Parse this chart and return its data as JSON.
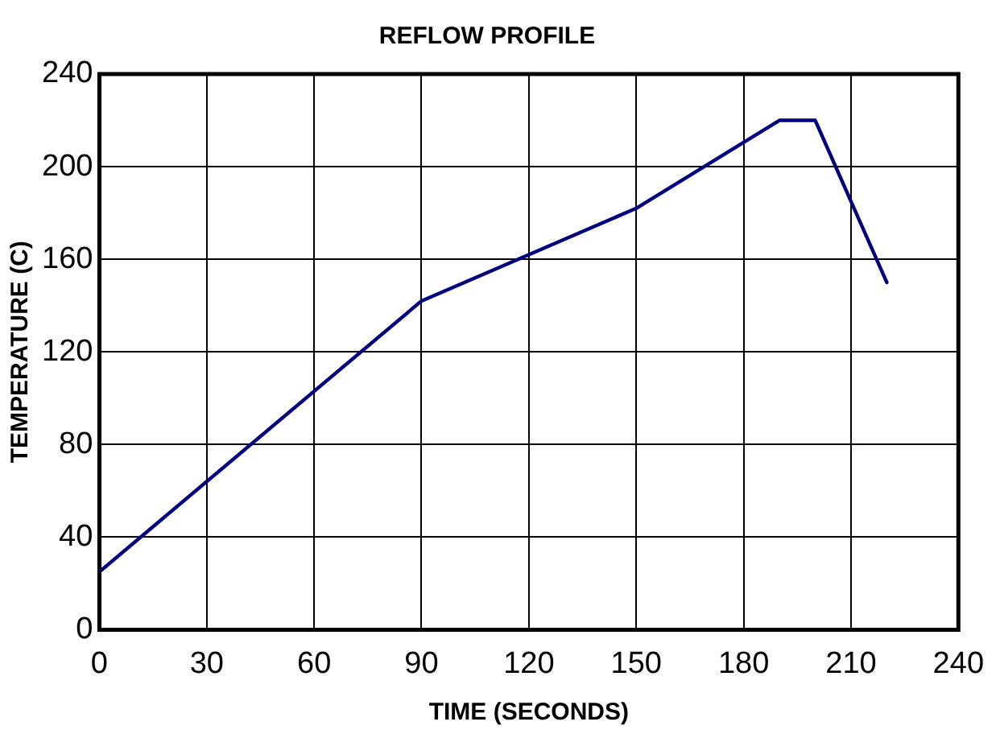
{
  "chart_data": {
    "type": "line",
    "title": "REFLOW PROFILE",
    "xlabel": "TIME (SECONDS)",
    "ylabel": "TEMPERATURE (C)",
    "x": [
      0,
      90,
      150,
      190,
      200,
      220
    ],
    "series": [
      {
        "color": "#000080",
        "values": [
          25,
          142,
          182,
          220,
          220,
          150
        ]
      }
    ],
    "xlim": [
      0,
      240
    ],
    "xticks": [
      0,
      30,
      60,
      90,
      120,
      150,
      180,
      210,
      240
    ],
    "ylim": [
      0,
      240
    ],
    "yticks": [
      0,
      40,
      80,
      120,
      160,
      200,
      240
    ],
    "grid": true,
    "legend": false,
    "marker": "none",
    "line_style": "solid"
  }
}
